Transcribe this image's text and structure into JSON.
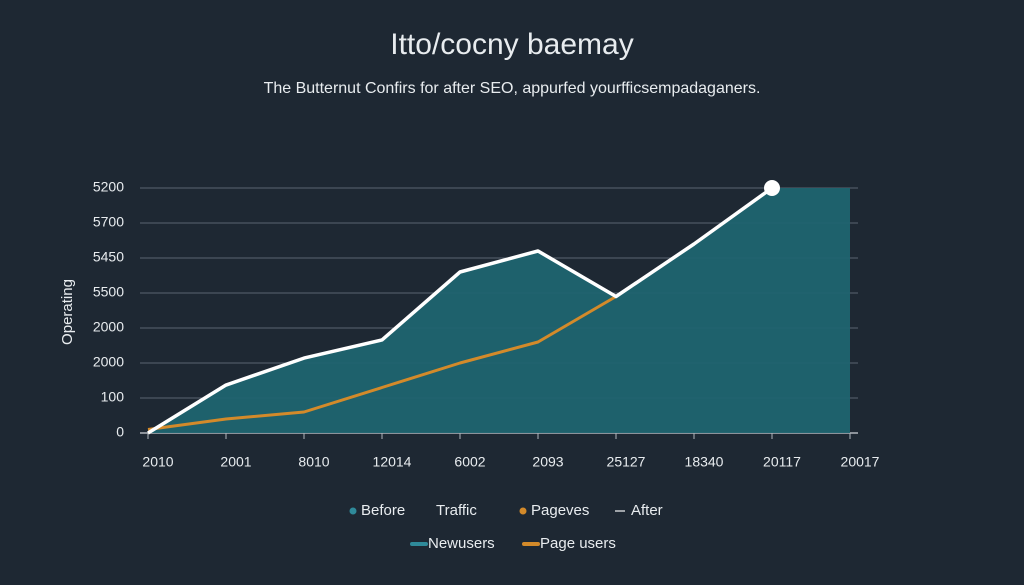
{
  "chart_data": {
    "type": "area-line",
    "title": "Itto/cocny baemay",
    "subtitle": "The Butternut Confirs for after SEO, appurfed yourfficsempadaganers.",
    "y_label": "Operating",
    "categories": [
      "2010",
      "2001",
      "8010",
      "12014",
      "6002",
      "2093",
      "25127",
      "18340",
      "20117",
      "20017"
    ],
    "ylim": [
      0,
      7
    ],
    "yticks": [
      {
        "value": 0,
        "label": "0"
      },
      {
        "value": 1,
        "label": "100"
      },
      {
        "value": 2,
        "label": "2000"
      },
      {
        "value": 3,
        "label": "2000"
      },
      {
        "value": 4,
        "label": "5500"
      },
      {
        "value": 5,
        "label": "5450"
      },
      {
        "value": 6,
        "label": "5700"
      },
      {
        "value": 7,
        "label": "5200"
      }
    ],
    "grid": true,
    "series": [
      {
        "name": "Newusers",
        "kind": "area",
        "color": "#1f6470",
        "values": [
          0,
          1.37,
          2.14,
          2.66,
          4.6,
          5.2,
          3.9,
          5.4,
          7,
          7
        ]
      },
      {
        "name": "Page users",
        "kind": "line",
        "color": "#d38a2a",
        "values": [
          0.1,
          0.4,
          0.6,
          1.3,
          2.0,
          2.6,
          3.9,
          null,
          null,
          null
        ]
      },
      {
        "name": "After",
        "kind": "line",
        "color": "#ffffff",
        "values": [
          0,
          1.37,
          2.14,
          2.66,
          4.6,
          5.2,
          3.9,
          5.4,
          7,
          null
        ]
      }
    ],
    "legend_extra": [
      {
        "name": "Before",
        "color": "#2f8a9a"
      },
      {
        "name": "Traffic",
        "color": null
      },
      {
        "name": "Pageves",
        "color": "#d38a2a"
      }
    ]
  }
}
